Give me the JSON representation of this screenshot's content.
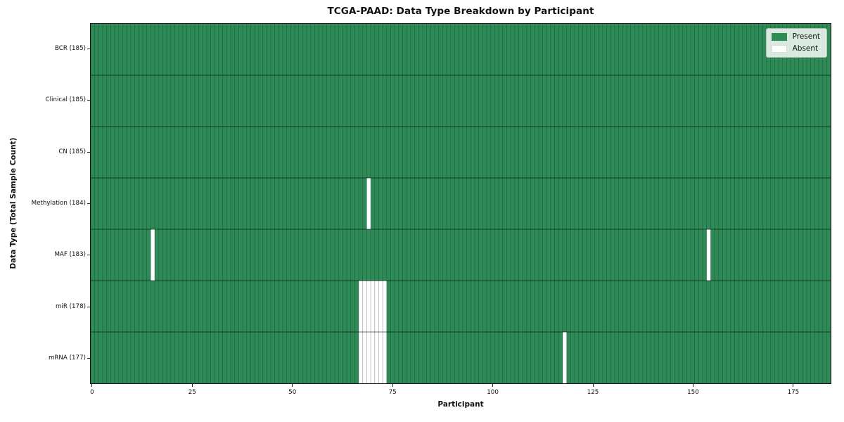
{
  "figure": {
    "title": "TCGA-PAAD: Data Type Breakdown by Participant",
    "xlabel": "Participant",
    "ylabel": "Data Type (Total Sample Count)"
  },
  "legend": {
    "items": [
      {
        "label": "Present",
        "color": "#2e8b57"
      },
      {
        "label": "Absent",
        "color": "#ffffff"
      }
    ]
  },
  "colors": {
    "present": "#2e8b57",
    "absent": "#ffffff",
    "cell_edge": "rgba(0,0,0,0.28)",
    "row_divider": "rgba(0,0,0,0.55)",
    "spine": "#151515"
  },
  "chart_data": {
    "type": "heatmap",
    "title": "TCGA-PAAD: Data Type Breakdown by Participant",
    "xlabel": "Participant",
    "ylabel": "Data Type (Total Sample Count)",
    "n_participants": 185,
    "x_range": [
      -0.5,
      184.5
    ],
    "x_ticks": [
      0,
      25,
      50,
      75,
      100,
      125,
      150,
      175
    ],
    "legend": [
      "Present",
      "Absent"
    ],
    "value_encoding": {
      "present": 1,
      "absent": 0
    },
    "rows": [
      {
        "label": "BCR (185)",
        "data_type": "BCR",
        "total_samples": 185,
        "absent_participants": []
      },
      {
        "label": "Clinical (185)",
        "data_type": "Clinical",
        "total_samples": 185,
        "absent_participants": []
      },
      {
        "label": "CN (185)",
        "data_type": "CN",
        "total_samples": 185,
        "absent_participants": []
      },
      {
        "label": "Methylation (184)",
        "data_type": "Methylation",
        "total_samples": 184,
        "absent_participants": [
          69
        ]
      },
      {
        "label": "MAF (183)",
        "data_type": "MAF",
        "total_samples": 183,
        "absent_participants": [
          15,
          154
        ]
      },
      {
        "label": "miR (178)",
        "data_type": "miR",
        "total_samples": 178,
        "absent_participants": [
          67,
          68,
          69,
          70,
          71,
          72,
          73
        ]
      },
      {
        "label": "mRNA (177)",
        "data_type": "mRNA",
        "total_samples": 177,
        "absent_participants": [
          67,
          68,
          69,
          70,
          71,
          72,
          73,
          118
        ]
      }
    ]
  }
}
